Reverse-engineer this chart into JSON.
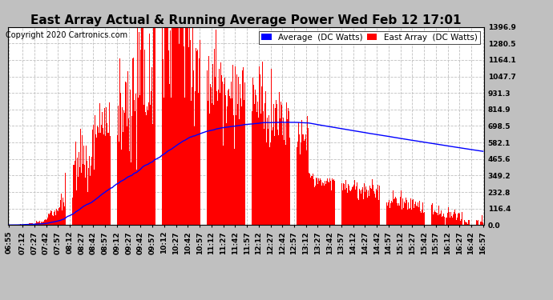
{
  "title": "East Array Actual & Running Average Power Wed Feb 12 17:01",
  "copyright": "Copyright 2020 Cartronics.com",
  "yticks": [
    0.0,
    116.4,
    232.8,
    349.2,
    465.6,
    582.1,
    698.5,
    814.9,
    931.3,
    1047.7,
    1164.1,
    1280.5,
    1396.9
  ],
  "ylim": [
    0,
    1396.9
  ],
  "background_color": "#c0c0c0",
  "plot_bg_color": "#ffffff",
  "grid_color": "#c0c0c0",
  "bar_color": "#ff0000",
  "avg_line_color": "#0000ff",
  "legend_avg_bg": "#0000ff",
  "legend_east_bg": "#ff0000",
  "title_fontsize": 11,
  "copyright_fontsize": 7,
  "tick_fontsize": 6.5,
  "legend_fontsize": 7.5,
  "xtick_labels": [
    "06:55",
    "07:12",
    "07:27",
    "07:42",
    "07:57",
    "08:12",
    "08:27",
    "08:42",
    "08:57",
    "09:12",
    "09:27",
    "09:42",
    "09:57",
    "10:12",
    "10:27",
    "10:42",
    "10:57",
    "11:12",
    "11:27",
    "11:42",
    "11:57",
    "12:12",
    "12:27",
    "12:42",
    "12:57",
    "13:12",
    "13:27",
    "13:42",
    "13:57",
    "14:12",
    "14:27",
    "14:42",
    "14:57",
    "15:12",
    "15:27",
    "15:42",
    "15:57",
    "16:12",
    "16:27",
    "16:42",
    "16:57"
  ]
}
